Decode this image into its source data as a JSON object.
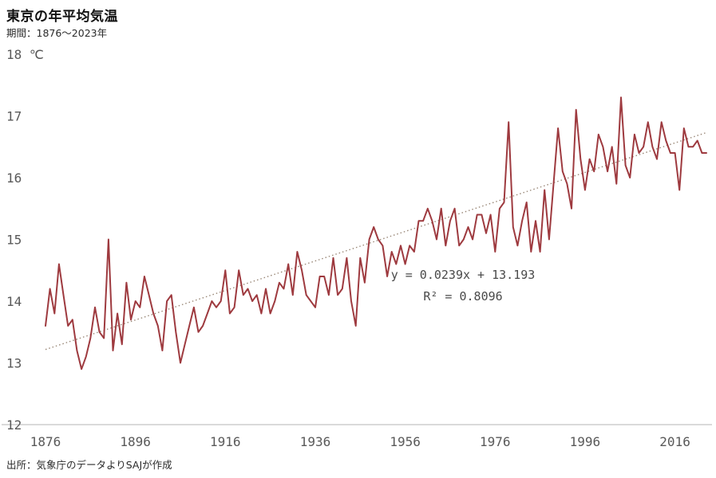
{
  "header": {
    "title": "東京の年平均気温",
    "subtitle": "期間：1876〜2023年"
  },
  "footer": {
    "source": "出所：気象庁のデータよりSAJが作成"
  },
  "colors": {
    "line": "#9e3a3f",
    "trend": "#9a8878",
    "axis": "#b5b5b5"
  },
  "chart_data": {
    "type": "line",
    "title": "東京の年平均気温",
    "subtitle": "期間：1876〜2023年",
    "xlabel": "",
    "ylabel": "℃",
    "unit": "℃",
    "ylim": [
      12,
      18
    ],
    "yticks": [
      12,
      13,
      14,
      15,
      16,
      17,
      18
    ],
    "xticks": [
      1876,
      1896,
      1916,
      1936,
      1956,
      1976,
      1996,
      2016
    ],
    "years": {
      "start": 1876,
      "end": 2023
    },
    "values": [
      13.6,
      14.2,
      13.8,
      14.6,
      14.1,
      13.6,
      13.7,
      13.2,
      12.9,
      13.1,
      13.4,
      13.9,
      13.5,
      13.4,
      15.0,
      13.2,
      13.8,
      13.3,
      14.3,
      13.7,
      14.0,
      13.9,
      14.4,
      14.1,
      13.8,
      13.6,
      13.2,
      14.0,
      14.1,
      13.5,
      13.0,
      13.3,
      13.6,
      13.9,
      13.5,
      13.6,
      13.8,
      14.0,
      13.9,
      14.0,
      14.5,
      13.8,
      13.9,
      14.5,
      14.1,
      14.2,
      14.0,
      14.1,
      13.8,
      14.2,
      13.8,
      14.0,
      14.3,
      14.2,
      14.6,
      14.1,
      14.8,
      14.5,
      14.1,
      14.0,
      13.9,
      14.4,
      14.4,
      14.1,
      14.7,
      14.1,
      14.2,
      14.7,
      14.0,
      13.6,
      14.7,
      14.3,
      15.0,
      15.2,
      15.0,
      14.9,
      14.4,
      14.8,
      14.6,
      14.9,
      14.6,
      14.9,
      14.8,
      15.3,
      15.3,
      15.5,
      15.3,
      15.0,
      15.5,
      14.9,
      15.3,
      15.5,
      14.9,
      15.0,
      15.2,
      15.0,
      15.4,
      15.4,
      15.1,
      15.4,
      14.8,
      15.5,
      15.6,
      16.9,
      15.2,
      14.9,
      15.3,
      15.6,
      14.8,
      15.3,
      14.8,
      15.8,
      15.0,
      15.9,
      16.8,
      16.1,
      15.9,
      15.5,
      17.1,
      16.3,
      15.8,
      16.3,
      16.1,
      16.7,
      16.5,
      16.1,
      16.5,
      15.9,
      17.3,
      16.2,
      16.0,
      16.7,
      16.4,
      16.5,
      16.9,
      16.5,
      16.3,
      16.9,
      16.6,
      16.4,
      16.4,
      15.8,
      16.8,
      16.5,
      16.5,
      16.6,
      16.4,
      16.4
    ],
    "trend": {
      "slope": 0.0239,
      "intercept": 13.193,
      "equation": "y = 0.0239x + 13.193",
      "r2": "R² = 0.8096"
    },
    "legend": "none",
    "grid": "off"
  }
}
